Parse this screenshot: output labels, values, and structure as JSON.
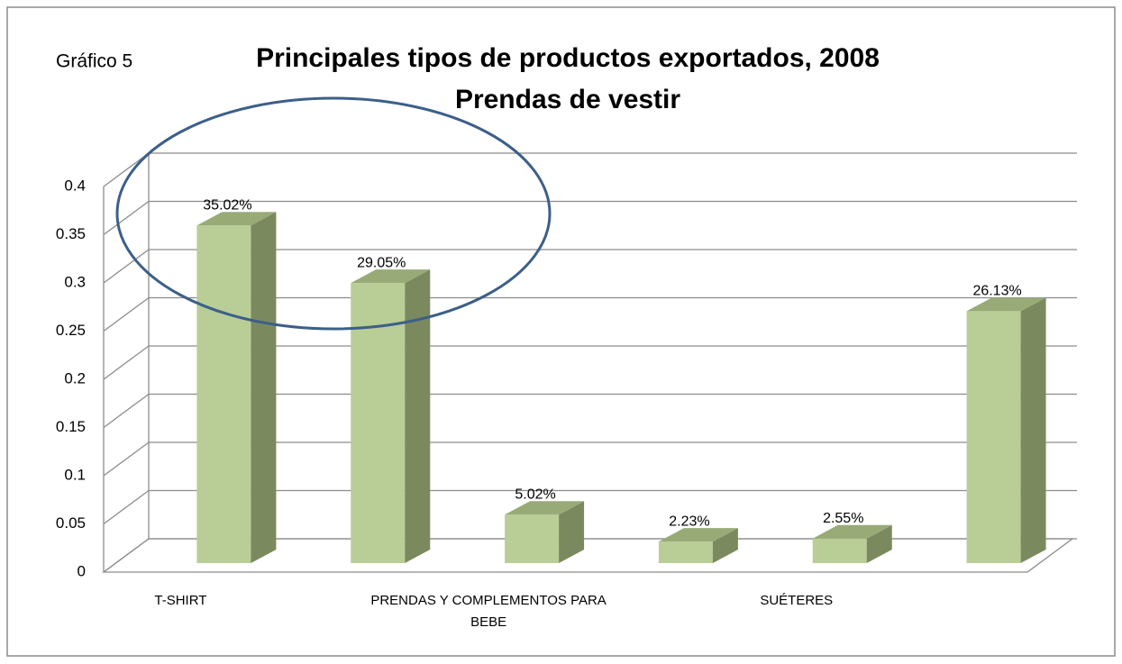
{
  "chart_data": {
    "type": "bar3d",
    "label": "Gráfico 5",
    "title": "Principales tipos de productos exportados, 2008",
    "subtitle": "Prendas de vestir",
    "categories": [
      "T-SHIRT",
      null,
      "PRENDAS Y COMPLEMENTOS PARA BEBE",
      null,
      "SUÉTERES",
      null
    ],
    "values": [
      0.3502,
      0.2905,
      0.0502,
      0.0223,
      0.0255,
      0.2613
    ],
    "value_labels": [
      "35.02%",
      "29.05%",
      "5.02%",
      "2.23%",
      "2.55%",
      "26.13%"
    ],
    "color": "#b9cd96",
    "ylim": [
      0,
      0.4
    ],
    "yticks": [
      0,
      0.05,
      0.1,
      0.15,
      0.2,
      0.25,
      0.3,
      0.35,
      0.4
    ],
    "grid": true
  }
}
